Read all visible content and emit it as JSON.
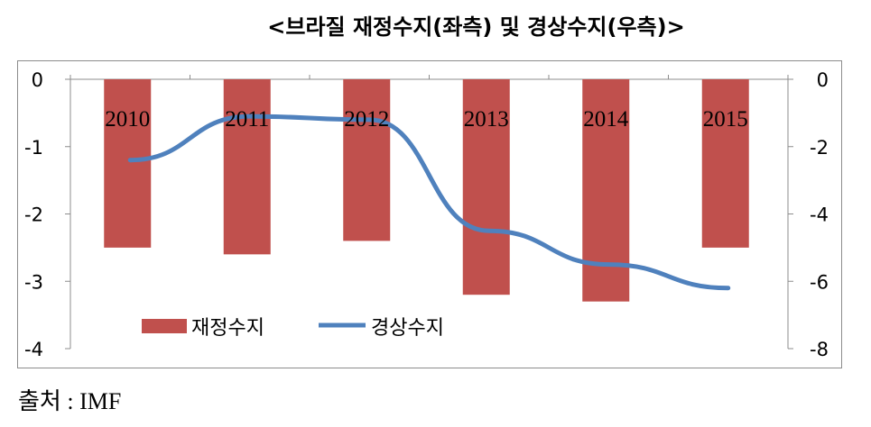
{
  "title": "<브라질 재정수지(좌측) 및 경상수지(우측)>",
  "source": "출처 : IMF",
  "chart_data": {
    "type": "bar",
    "categories": [
      "2010",
      "2011",
      "2012",
      "2013",
      "2014",
      "2015"
    ],
    "y_left": {
      "range": [
        -4,
        0
      ],
      "ticks": [
        "0",
        "-1",
        "-2",
        "-3",
        "-4"
      ]
    },
    "y_right": {
      "range": [
        -8,
        0
      ],
      "ticks": [
        "0",
        "-2",
        "-4",
        "-6",
        "-8"
      ]
    },
    "series": [
      {
        "name": "재정수지",
        "type": "bar",
        "axis": "left",
        "color": "#c0504d",
        "values": [
          -2.5,
          -2.6,
          -2.4,
          -3.2,
          -3.3,
          -2.5
        ]
      },
      {
        "name": "경상수지",
        "type": "line",
        "axis": "right",
        "color": "#4f81bd",
        "values": [
          -2.4,
          -1.1,
          -1.2,
          -4.5,
          -5.5,
          -6.2
        ]
      }
    ],
    "legend": "bottom-left inside plot",
    "grid": false
  }
}
